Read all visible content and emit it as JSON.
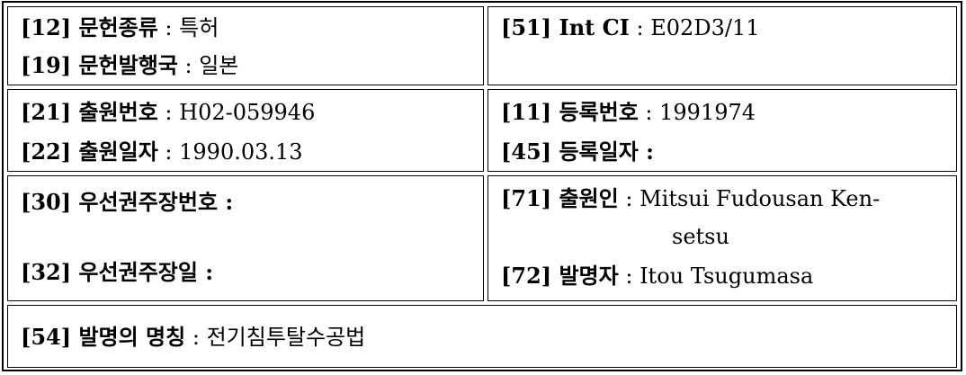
{
  "r1": {
    "left": {
      "l1": {
        "label": "[12] 문헌종류",
        "sep": " : ",
        "value": "특허"
      },
      "l2": {
        "label": "[19] 문헌발행국",
        "sep": " : ",
        "value": "일본"
      }
    },
    "right": {
      "l1": {
        "label": "[51] Int CI",
        "sep": " : ",
        "value": "E02D3/11"
      }
    }
  },
  "r2": {
    "left": {
      "l1": {
        "label": "[21] 출원번호",
        "sep": " : ",
        "value": "H02-059946"
      },
      "l2": {
        "label": "[22] 출원일자",
        "sep": " : ",
        "value": "1990.03.13"
      }
    },
    "right": {
      "l1": {
        "label": "[11] 등록번호",
        "sep": " : ",
        "value": "1991974"
      },
      "l2": {
        "label": "[45] 등록일자",
        "sep": " :",
        "value": ""
      }
    }
  },
  "r3": {
    "left": {
      "l1": {
        "label": "[30] 우선권주장번호",
        "sep": " :",
        "value": ""
      },
      "l2": {
        "label": "[32] 우선권주장일",
        "sep": " :",
        "value": ""
      }
    },
    "right": {
      "l1": {
        "label": "[71] 출원인",
        "sep": " : ",
        "value": "Mitsui Fudousan Ken-"
      },
      "l1b": {
        "value": "setsu"
      },
      "l2": {
        "label": "[72] 발명자",
        "sep": " : ",
        "value": "Itou Tsugumasa"
      }
    }
  },
  "r4": {
    "l1": {
      "label": "[54] 발명의 명칭",
      "sep": " : ",
      "value": "전기침투탈수공법"
    }
  }
}
